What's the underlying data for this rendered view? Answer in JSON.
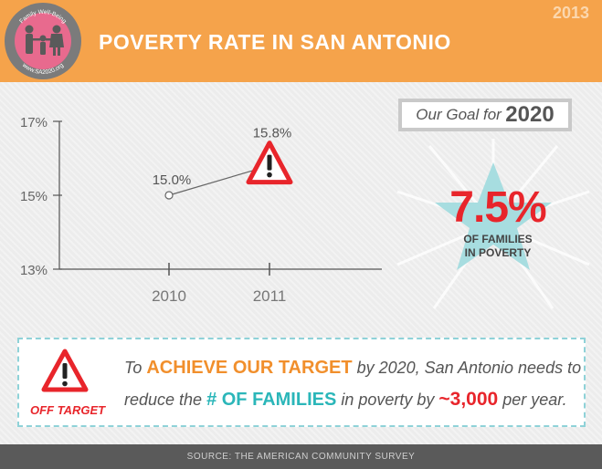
{
  "header": {
    "year": "2013",
    "title": "POVERTY RATE IN SAN ANTONIO",
    "logo": {
      "top_text": "Family Well-Being",
      "bottom_text": "www.SA2020.org",
      "icon": "family-icon",
      "ring_color": "#7b7b7b",
      "fill_color": "#e86a8e"
    },
    "bg_color": "#f5a34b"
  },
  "chart_data": {
    "type": "line",
    "categories": [
      "2010",
      "2011"
    ],
    "series": [
      {
        "values": [
          15.0,
          15.8
        ],
        "value_labels": [
          "15.0%",
          "15.8%"
        ]
      }
    ],
    "ylim": [
      13,
      17
    ],
    "yticks": [
      13,
      15,
      17
    ],
    "ytick_labels": [
      "13%",
      "15%",
      "17%"
    ],
    "title": "",
    "xlabel": "",
    "ylabel": "",
    "grid": false,
    "marker_2011": "warning-triangle-icon"
  },
  "goal": {
    "label": "Our Goal for",
    "year": "2020",
    "value": "7.5%",
    "subtitle_line1": "OF FAMILIES",
    "subtitle_line2": "IN POVERTY",
    "value_color": "#e8252b",
    "star_color": "#a7dde0"
  },
  "callout": {
    "icon": "warning-triangle-icon",
    "status": "OFF TARGET",
    "line1_pre": "To ",
    "line1_hl": "ACHIEVE OUR TARGET",
    "line1_post": " by 2020, San Antonio needs to",
    "line2_pre": "reduce the ",
    "line2_hl": "# OF FAMILIES",
    "line2_mid": " in poverty by ",
    "line2_value": "~3,000",
    "line2_post": " per year."
  },
  "footer": {
    "source": "SOURCE: THE AMERICAN COMMUNITY SURVEY"
  }
}
